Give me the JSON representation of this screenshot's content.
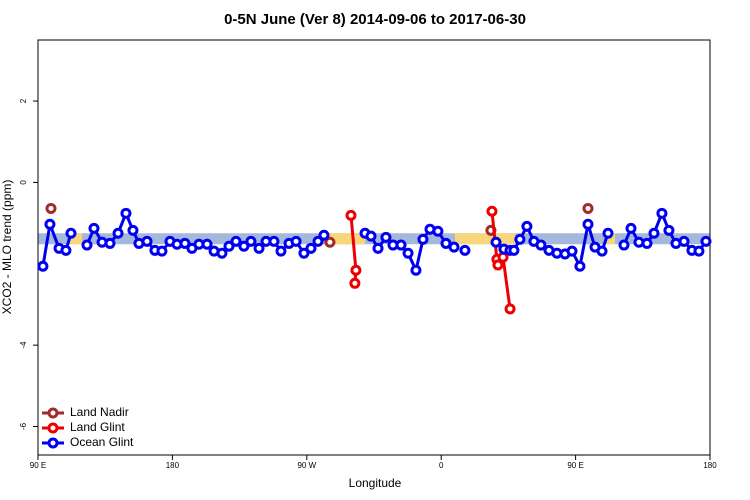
{
  "chart_data": {
    "type": "line",
    "title": "0-5N June (Ver 8)   2014-09-06 to 2017-06-30",
    "xlabel": "Longitude",
    "ylabel": "XCO2 - MLO trend (ppm)",
    "xlim": [
      90,
      540
    ],
    "xticks": [
      {
        "value": 90,
        "label": "90 E"
      },
      {
        "value": 180,
        "label": "180"
      },
      {
        "value": 270,
        "label": "90 W"
      },
      {
        "value": 360,
        "label": "0"
      },
      {
        "value": 450,
        "label": "90 E"
      },
      {
        "value": 540,
        "label": "180"
      }
    ],
    "ylim": [
      -6.7,
      3.5
    ],
    "yticks": [
      -6,
      -4,
      0,
      2
    ],
    "legend": "bottom-left",
    "bands": [
      {
        "x": [
          90,
          540
        ],
        "y": [
          -1.52,
          -1.25
        ],
        "color": "#a3b8da"
      },
      {
        "x": [
          111.4,
          119.5
        ],
        "y": [
          -1.52,
          -1.25
        ],
        "color": "#f8d67c"
      },
      {
        "x": [
          282.2,
          309
        ],
        "y": [
          -1.52,
          -1.25
        ],
        "color": "#f8d67c"
      },
      {
        "x": [
          369.2,
          409.4
        ],
        "y": [
          -1.52,
          -1.25
        ],
        "color": "#f8d67c"
      },
      {
        "x": [
          469.7,
          476.4
        ],
        "y": [
          -1.52,
          -1.25
        ],
        "color": "#f8d67c"
      }
    ],
    "series": [
      {
        "name": "Land Nadir",
        "color": "#a52a2a",
        "x": [
          98.7,
          null,
          285.5,
          null,
          393.3,
          null,
          458.3
        ],
        "values": [
          -0.64,
          null,
          -1.47,
          null,
          -1.18,
          null,
          -0.64
        ]
      },
      {
        "name": "Land Glint",
        "color": "#ee0000",
        "x": [
          299.6,
          302.9,
          302.2,
          null,
          394.0,
          397.3,
          398.0,
          401.4,
          406.1
        ],
        "values": [
          -0.81,
          -2.16,
          -2.48,
          null,
          -0.71,
          -1.89,
          -2.03,
          -1.84,
          -3.11
        ]
      },
      {
        "name": "Ocean Glint",
        "color": "#0000ee",
        "x": [
          93.3,
          98.0,
          104.1,
          108.7,
          112.1,
          null,
          122.8,
          127.5,
          132.9,
          138.2,
          143.6,
          148.9,
          153.6,
          157.6,
          163.0,
          168.3,
          173.0,
          178.4,
          183.1,
          188.4,
          193.1,
          197.8,
          203.2,
          207.9,
          213.2,
          217.9,
          222.6,
          227.9,
          232.6,
          238.0,
          242.7,
          248.0,
          252.7,
          258.1,
          262.8,
          268.1,
          272.8,
          277.5,
          281.5,
          null,
          309.0,
          313.0,
          317.7,
          323.0,
          327.7,
          333.1,
          337.8,
          343.1,
          347.8,
          352.5,
          357.8,
          363.2,
          368.6,
          null,
          375.9,
          null,
          396.7,
          402.0,
          406.1,
          408.7,
          412.7,
          417.4,
          422.1,
          426.8,
          432.2,
          437.5,
          442.9,
          447.6,
          452.9,
          458.3,
          463.0,
          467.7,
          471.7,
          null,
          482.4,
          487.1,
          492.4,
          497.8,
          502.5,
          507.8,
          512.5,
          517.2,
          522.6,
          527.9,
          532.6,
          537.3
        ],
        "values": [
          -2.06,
          -1.03,
          -1.62,
          -1.67,
          -1.25,
          null,
          -1.54,
          -1.13,
          -1.47,
          -1.5,
          -1.25,
          -0.76,
          -1.18,
          -1.5,
          -1.45,
          -1.67,
          -1.69,
          -1.45,
          -1.52,
          -1.5,
          -1.62,
          -1.52,
          -1.52,
          -1.69,
          -1.74,
          -1.57,
          -1.45,
          -1.57,
          -1.45,
          -1.62,
          -1.45,
          -1.45,
          -1.69,
          -1.5,
          -1.45,
          -1.74,
          -1.62,
          -1.45,
          -1.3,
          null,
          -1.25,
          -1.32,
          -1.62,
          -1.35,
          -1.54,
          -1.54,
          -1.74,
          -2.16,
          -1.4,
          -1.15,
          -1.2,
          -1.5,
          -1.59,
          null,
          -1.67,
          null,
          -1.47,
          -1.64,
          -1.67,
          -1.67,
          -1.4,
          -1.08,
          -1.45,
          -1.54,
          -1.67,
          -1.74,
          -1.76,
          -1.69,
          -2.06,
          -1.03,
          -1.59,
          -1.69,
          -1.25,
          null,
          -1.54,
          -1.13,
          -1.47,
          -1.5,
          -1.25,
          -0.76,
          -1.18,
          -1.5,
          -1.45,
          -1.67,
          -1.69,
          -1.45
        ]
      }
    ]
  }
}
